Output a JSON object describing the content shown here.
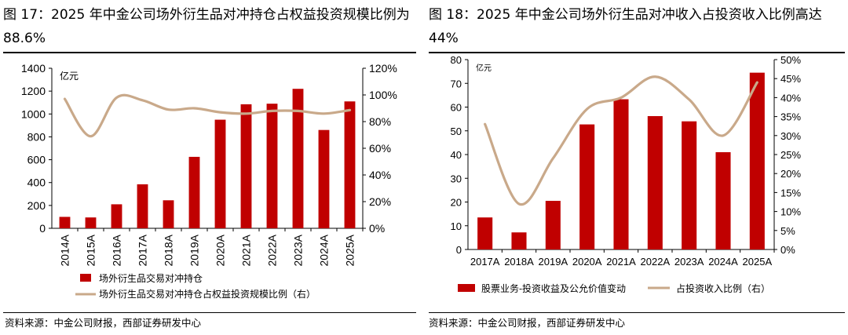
{
  "colors": {
    "bar": "#c00000",
    "line": "#c9a98a",
    "text": "#000000",
    "rule": "#000000"
  },
  "left_panel": {
    "title": "图 17：2025 年中金公司场外衍生品对冲持仓占权益投资规模比例为 88.6%",
    "source": "资料来源：中金公司财报，西部证券研发中心"
  },
  "right_panel": {
    "title": "图 18：2025 年中金公司场外衍生品对冲收入占投资收入比例高达 44%",
    "source": "资料来源：中金公司财报，西部证券研发中心"
  },
  "chart_data": [
    {
      "type": "bar",
      "unit_label": "亿元",
      "categories": [
        "2014A",
        "2015A",
        "2016A",
        "2017A",
        "2018A",
        "2019A",
        "2020A",
        "2021A",
        "2022A",
        "2023A",
        "2024A",
        "2025A"
      ],
      "series": [
        {
          "name": "场外衍生品交易对冲持仓",
          "kind": "bar",
          "axis": "left",
          "values": [
            100,
            95,
            210,
            385,
            245,
            625,
            950,
            1085,
            1090,
            1220,
            860,
            1110
          ]
        },
        {
          "name": "场外衍生品交易对冲持仓占权益投资规模比例（右）",
          "kind": "line",
          "axis": "right",
          "values": [
            97,
            69,
            98,
            96,
            89,
            90,
            87,
            86,
            88,
            88,
            86,
            88.6
          ]
        }
      ],
      "ylim_left": [
        0,
        1400
      ],
      "yticks_left": [
        "0",
        "200",
        "400",
        "600",
        "800",
        "1000",
        "1200",
        "1400"
      ],
      "ylim_right": [
        0,
        120
      ],
      "yticks_right": [
        "0%",
        "20%",
        "40%",
        "60%",
        "80%",
        "100%",
        "120%"
      ],
      "legend_position": "bottom-left"
    },
    {
      "type": "bar",
      "unit_label": "亿元",
      "categories": [
        "2017A",
        "2018A",
        "2019A",
        "2020A",
        "2021A",
        "2022A",
        "2023A",
        "2024A",
        "2025A"
      ],
      "series": [
        {
          "name": "股票业务-投资收益及公允价值变动",
          "kind": "bar",
          "axis": "left",
          "values": [
            13.5,
            7.2,
            20.5,
            52.7,
            63.3,
            56.2,
            54,
            41,
            74.5
          ]
        },
        {
          "name": "占投资收入比例（右）",
          "kind": "line",
          "axis": "right",
          "values": [
            33,
            12,
            24,
            37,
            40,
            45.5,
            39.5,
            30,
            44
          ]
        }
      ],
      "ylim_left": [
        0,
        80
      ],
      "yticks_left": [
        "0",
        "10",
        "20",
        "30",
        "40",
        "50",
        "60",
        "70",
        "80"
      ],
      "ylim_right": [
        0,
        50
      ],
      "yticks_right": [
        "0%",
        "5%",
        "10%",
        "15%",
        "20%",
        "25%",
        "30%",
        "35%",
        "40%",
        "45%",
        "50%"
      ],
      "legend_position": "bottom"
    }
  ]
}
